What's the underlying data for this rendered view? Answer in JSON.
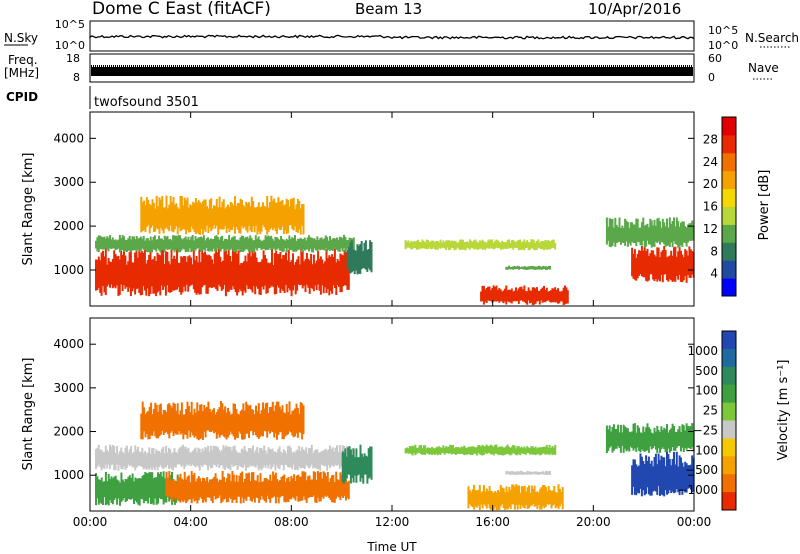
{
  "header": {
    "title": "Dome C East (fitACF)",
    "beam": "Beam 13",
    "date": "10/Apr/2016"
  },
  "chart_data": [
    {
      "type": "line",
      "panel": "summary-nsky-nsearch",
      "left_label": "N.Sky",
      "right_label": "N.Search",
      "left_ticks": [
        "10^5",
        "10^0"
      ],
      "right_ticks": [
        "10^5",
        "10^0"
      ],
      "note": "Noise summary trace, roughly flat across the day"
    },
    {
      "type": "line",
      "panel": "summary-freq-nave",
      "left_label_line1": "Freq.",
      "left_label_line2": "[MHz]",
      "right_label": "Nave",
      "left_ticks": [
        "18",
        "8"
      ],
      "right_ticks": [
        "60",
        "0"
      ]
    },
    {
      "type": "table",
      "panel": "cpid",
      "label": "CPID",
      "value": "twofsound 3501"
    },
    {
      "type": "heatmap",
      "panel": "power",
      "ylabel": "Slant Range [km]",
      "xlabel": "Time UT",
      "xticks": [
        "00:00",
        "04:00",
        "08:00",
        "12:00",
        "16:00",
        "20:00",
        "00:00"
      ],
      "xlim_hours": [
        0,
        24
      ],
      "yticks": [
        1000,
        2000,
        3000,
        4000
      ],
      "ylim_km": [
        180,
        4600
      ],
      "colorbar": {
        "label": "Power [dB]",
        "ticks": [
          "4",
          "8",
          "12",
          "16",
          "20",
          "24",
          "28"
        ],
        "colors": [
          "#0000ff",
          "#1f4aa0",
          "#2f7a5a",
          "#5aa84a",
          "#b8d83a",
          "#f5d800",
          "#f5a200",
          "#f07000",
          "#e82a00",
          "#e00000"
        ]
      },
      "regions": [
        {
          "t0": 0.2,
          "t1": 10.3,
          "r0": 400,
          "r1": 1500,
          "color": "#e82a00"
        },
        {
          "t0": 0.2,
          "t1": 10.5,
          "r0": 1400,
          "r1": 1800,
          "color": "#5aa84a"
        },
        {
          "t0": 10.2,
          "t1": 11.2,
          "r0": 900,
          "r1": 1700,
          "color": "#2f7a5a"
        },
        {
          "t0": 12.5,
          "t1": 18.5,
          "r0": 1450,
          "r1": 1700,
          "color": "#b8d83a"
        },
        {
          "t0": 16.5,
          "t1": 18.3,
          "r0": 1000,
          "r1": 1100,
          "color": "#5aa84a"
        },
        {
          "t0": 15.5,
          "t1": 19.0,
          "r0": 200,
          "r1": 650,
          "color": "#e82a00"
        },
        {
          "t0": 21.5,
          "t1": 24.0,
          "r0": 700,
          "r1": 1550,
          "color": "#e82a00"
        },
        {
          "t0": 20.5,
          "t1": 24.0,
          "r0": 1500,
          "r1": 2200,
          "color": "#5aa84a"
        },
        {
          "t0": 2.0,
          "t1": 8.5,
          "r0": 1800,
          "r1": 2700,
          "color": "#f5a200"
        }
      ]
    },
    {
      "type": "heatmap",
      "panel": "velocity",
      "ylabel": "Slant Range [km]",
      "xlabel": "Time UT",
      "xticks": [
        "00:00",
        "04:00",
        "08:00",
        "12:00",
        "16:00",
        "20:00",
        "00:00"
      ],
      "xlim_hours": [
        0,
        24
      ],
      "yticks": [
        1000,
        2000,
        3000,
        4000
      ],
      "ylim_km": [
        180,
        4600
      ],
      "colorbar": {
        "label": "Velocity [m s⁻¹]",
        "ticks": [
          "1000",
          "500",
          "100",
          "25",
          "−25",
          "−100",
          "−500",
          "−1000"
        ],
        "colors": [
          "#2048b0",
          "#1f6aa0",
          "#2f8a5a",
          "#3fa040",
          "#7cc83a",
          "#c8c8c8",
          "#f5c800",
          "#f5a200",
          "#f07000",
          "#e82a00"
        ]
      },
      "regions": [
        {
          "t0": 0.2,
          "t1": 3.5,
          "r0": 300,
          "r1": 1100,
          "color": "#3fa040"
        },
        {
          "t0": 3.0,
          "t1": 10.3,
          "r0": 350,
          "r1": 1100,
          "color": "#f07000"
        },
        {
          "t0": 0.2,
          "t1": 10.5,
          "r0": 1100,
          "r1": 1700,
          "color": "#c8c8c8"
        },
        {
          "t0": 10.0,
          "t1": 11.2,
          "r0": 800,
          "r1": 1700,
          "color": "#2f8a5a"
        },
        {
          "t0": 12.5,
          "t1": 18.5,
          "r0": 1450,
          "r1": 1700,
          "color": "#7cc83a"
        },
        {
          "t0": 16.5,
          "t1": 18.3,
          "r0": 1000,
          "r1": 1100,
          "color": "#c8c8c8"
        },
        {
          "t0": 15.0,
          "t1": 18.8,
          "r0": 200,
          "r1": 800,
          "color": "#f5a200"
        },
        {
          "t0": 21.5,
          "t1": 24.0,
          "r0": 500,
          "r1": 1550,
          "color": "#2048b0"
        },
        {
          "t0": 20.5,
          "t1": 24.0,
          "r0": 1500,
          "r1": 2200,
          "color": "#3fa040"
        },
        {
          "t0": 2.0,
          "t1": 8.5,
          "r0": 1800,
          "r1": 2700,
          "color": "#f07000"
        }
      ]
    }
  ]
}
